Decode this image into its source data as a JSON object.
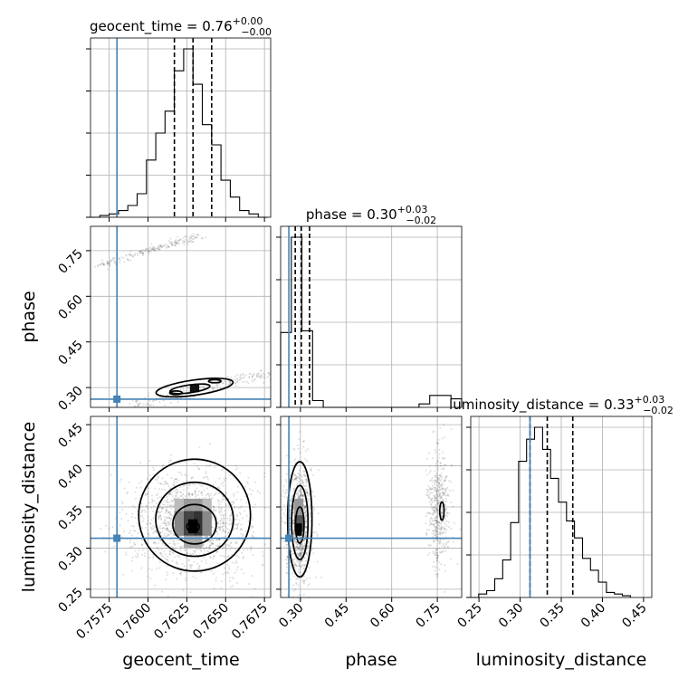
{
  "chart_data": {
    "type": "scatter",
    "kind": "corner",
    "truth_color": "#4682b4",
    "params": [
      {
        "key": "geocent_time",
        "axis_label": "geocent_time",
        "title_main": "geocent_time = 0.76",
        "title_plus": "+0.00",
        "title_minus": "−0.00",
        "range": [
          0.7563,
          0.7679
        ],
        "ticks": [
          0.7575,
          0.76,
          0.7625,
          0.765,
          0.7675
        ],
        "tick_labels": [
          "0.7575",
          "0.7600",
          "0.7625",
          "0.7650",
          "0.7675"
        ],
        "truth": 0.758,
        "quantiles": [
          0.7617,
          0.7629,
          0.7641
        ],
        "hist_edges": [
          0.7563,
          0.7569,
          0.7575,
          0.7581,
          0.7587,
          0.7593,
          0.7599,
          0.7605,
          0.7611,
          0.7617,
          0.7623,
          0.7629,
          0.7635,
          0.7641,
          0.7647,
          0.7653,
          0.7659,
          0.7665,
          0.7671,
          0.7677
        ],
        "hist_values": [
          0.0,
          0.01,
          0.02,
          0.04,
          0.07,
          0.14,
          0.34,
          0.5,
          0.63,
          0.87,
          1.0,
          0.79,
          0.55,
          0.43,
          0.22,
          0.12,
          0.04,
          0.02,
          0.0
        ]
      },
      {
        "key": "phase",
        "axis_label": "phase",
        "title_main": "phase = 0.30",
        "title_plus": "+0.03",
        "title_minus": "−0.02",
        "range": [
          0.235,
          0.83
        ],
        "ticks": [
          0.3,
          0.45,
          0.6,
          0.75
        ],
        "tick_labels": [
          "0.30",
          "0.45",
          "0.60",
          "0.75"
        ],
        "truth": 0.262,
        "quantiles": [
          0.283,
          0.303,
          0.33
        ],
        "hist_edges": [
          0.235,
          0.27,
          0.305,
          0.34,
          0.375,
          0.41,
          0.445,
          0.48,
          0.515,
          0.55,
          0.585,
          0.62,
          0.655,
          0.69,
          0.725,
          0.76,
          0.795,
          0.83
        ],
        "hist_values": [
          0.44,
          1.0,
          0.45,
          0.04,
          0.0,
          0.0,
          0.0,
          0.0,
          0.0,
          0.0,
          0.0,
          0.0,
          0.0,
          0.02,
          0.07,
          0.07,
          0.05
        ]
      },
      {
        "key": "luminosity_distance",
        "axis_label": "luminosity_distance",
        "title_main": "luminosity_distance = 0.33",
        "title_plus": "+0.03",
        "title_minus": "−0.02",
        "range": [
          0.24,
          0.46
        ],
        "ticks": [
          0.25,
          0.3,
          0.35,
          0.4,
          0.45
        ],
        "tick_labels": [
          "0.25",
          "0.30",
          "0.35",
          "0.40",
          "0.45"
        ],
        "truth": 0.312,
        "quantiles": [
          0.312,
          0.333,
          0.364
        ],
        "hist_edges": [
          0.24,
          0.2497,
          0.2594,
          0.2691,
          0.2788,
          0.2885,
          0.2982,
          0.3079,
          0.3176,
          0.3273,
          0.337,
          0.3467,
          0.3564,
          0.3661,
          0.3758,
          0.3855,
          0.3952,
          0.4049,
          0.4146,
          0.4243,
          0.434
        ],
        "hist_values": [
          0.0,
          0.02,
          0.04,
          0.11,
          0.22,
          0.44,
          0.8,
          0.93,
          1.0,
          0.87,
          0.7,
          0.56,
          0.45,
          0.35,
          0.23,
          0.16,
          0.09,
          0.03,
          0.02,
          0.01
        ]
      }
    ],
    "contour_levels": [
      "0.5-sigma",
      "1-sigma",
      "1.5-sigma",
      "2-sigma"
    ],
    "grid": true
  }
}
